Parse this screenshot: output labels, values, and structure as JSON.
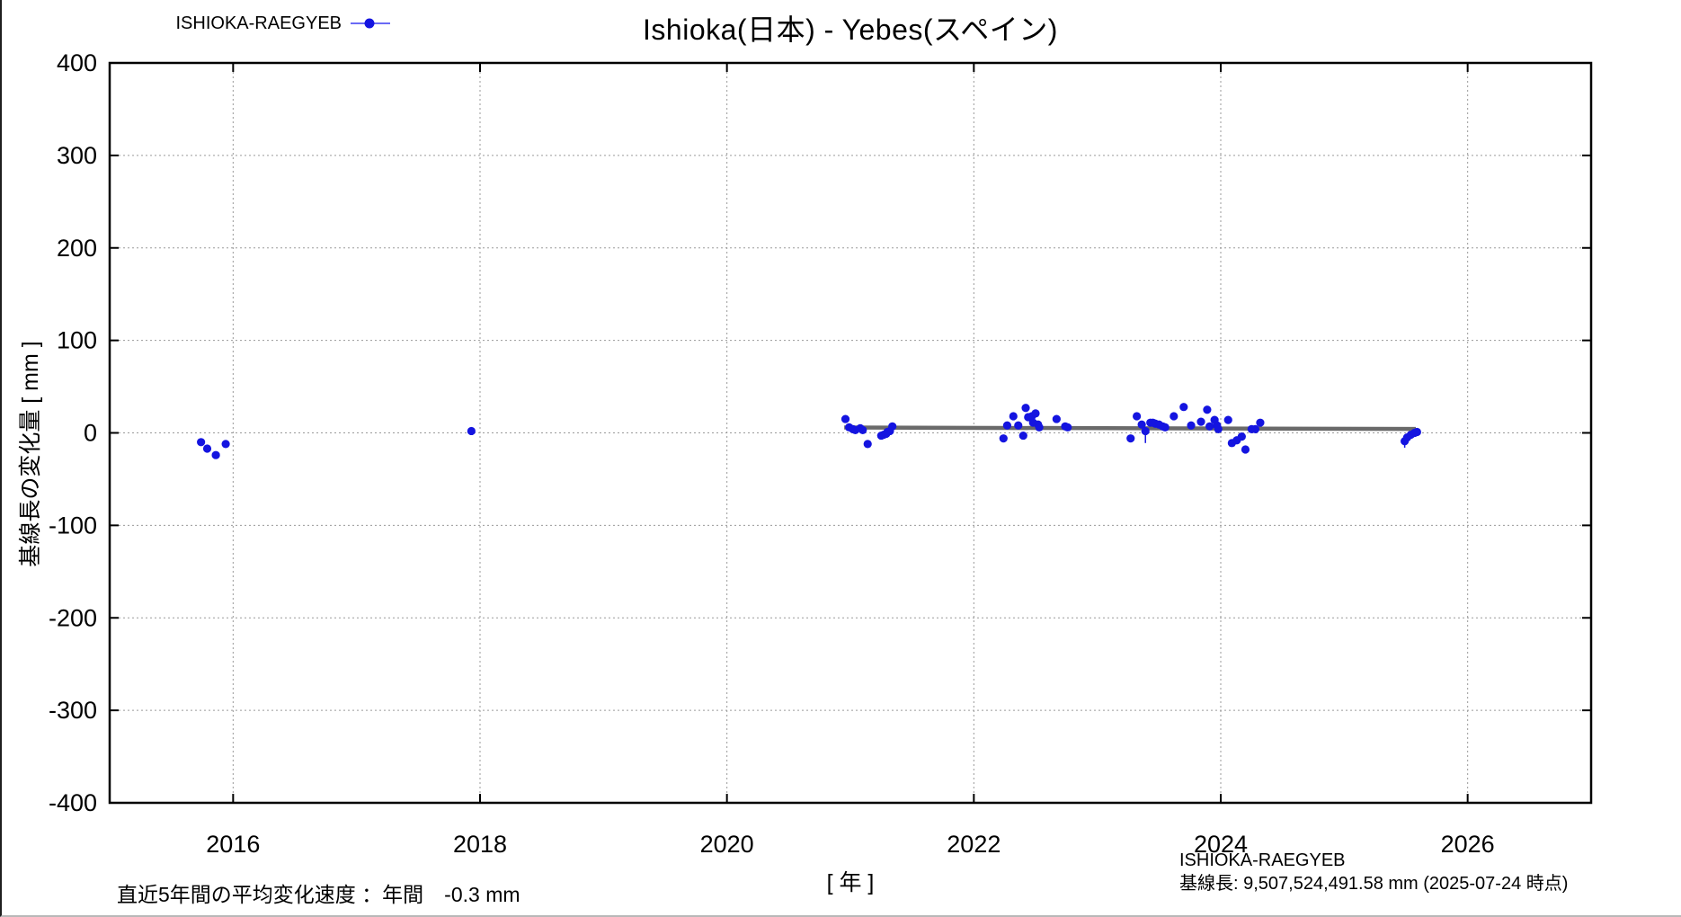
{
  "title": "Ishioka(日本) - Yebes(スペイン)",
  "legend": {
    "label": "ISHIOKA-RAEGYEB"
  },
  "axis": {
    "y_label": "基線長の変化量 [ mm ]",
    "x_label": "[ 年 ]"
  },
  "footnotes": {
    "rate": "直近5年間の平均変化速度 ：年間　-0.3 mm",
    "pair": "ISHIOKA-RAEGYEB",
    "baseline": "基線長: 9,507,524,491.58 mm (2025-07-24 時点)"
  },
  "colors": {
    "marker": "#1414e0",
    "legend_line": "#6a6af5",
    "trend": "#6a6a6a",
    "grid": "#9a9a9a",
    "axis": "#000000"
  },
  "chart_data": {
    "type": "scatter",
    "title": "Ishioka(日本) - Yebes(スペイン)",
    "series_name": "ISHIOKA-RAEGYEB",
    "xlabel": "[ 年 ]",
    "ylabel": "基線長の変化量 [ mm ]",
    "xlim": [
      2015,
      2027
    ],
    "ylim": [
      -400,
      400
    ],
    "xticks": [
      2016,
      2018,
      2020,
      2022,
      2024,
      2026
    ],
    "yticks": [
      -400,
      -300,
      -200,
      -100,
      0,
      100,
      200,
      300,
      400
    ],
    "grid": "dotted-at-major-ticks",
    "legend_position": "top-left-outside",
    "points": [
      [
        2015.74,
        -10
      ],
      [
        2015.79,
        -17
      ],
      [
        2015.86,
        -24
      ],
      [
        2015.94,
        -12
      ],
      [
        2017.93,
        2
      ],
      [
        2020.96,
        15
      ],
      [
        2020.99,
        6
      ],
      [
        2021.02,
        4
      ],
      [
        2021.04,
        3
      ],
      [
        2021.08,
        5
      ],
      [
        2021.1,
        3
      ],
      [
        2021.14,
        -12
      ],
      [
        2021.25,
        -3
      ],
      [
        2021.27,
        -2
      ],
      [
        2021.29,
        -1
      ],
      [
        2021.3,
        1
      ],
      [
        2021.32,
        2
      ],
      [
        2021.34,
        7
      ],
      [
        2022.24,
        -6
      ],
      [
        2022.27,
        8
      ],
      [
        2022.32,
        18
      ],
      [
        2022.36,
        8
      ],
      [
        2022.4,
        -3
      ],
      [
        2022.42,
        27
      ],
      [
        2022.44,
        17
      ],
      [
        2022.47,
        18
      ],
      [
        2022.48,
        11
      ],
      [
        2022.5,
        21
      ],
      [
        2022.52,
        9
      ],
      [
        2022.53,
        6
      ],
      [
        2022.67,
        15
      ],
      [
        2022.74,
        7
      ],
      [
        2022.76,
        6
      ],
      [
        2023.27,
        -6
      ],
      [
        2023.32,
        18
      ],
      [
        2023.36,
        9
      ],
      [
        2023.39,
        2
      ],
      [
        2023.43,
        11
      ],
      [
        2023.45,
        11
      ],
      [
        2023.47,
        10
      ],
      [
        2023.5,
        9
      ],
      [
        2023.53,
        7
      ],
      [
        2023.55,
        6
      ],
      [
        2023.62,
        18
      ],
      [
        2023.7,
        28
      ],
      [
        2023.76,
        8
      ],
      [
        2023.84,
        12
      ],
      [
        2023.89,
        25
      ],
      [
        2023.91,
        7
      ],
      [
        2023.95,
        14
      ],
      [
        2023.97,
        8
      ],
      [
        2023.98,
        4
      ],
      [
        2024.06,
        14
      ],
      [
        2024.09,
        -11
      ],
      [
        2024.13,
        -8
      ],
      [
        2024.17,
        -4
      ],
      [
        2024.2,
        -18
      ],
      [
        2024.25,
        4
      ],
      [
        2024.28,
        4
      ],
      [
        2024.32,
        11
      ],
      [
        2025.49,
        -9
      ],
      [
        2025.51,
        -5
      ],
      [
        2025.54,
        -2
      ],
      [
        2025.57,
        0
      ],
      [
        2025.59,
        1
      ]
    ],
    "error_bars": [
      {
        "x": 2023.39,
        "low": -11,
        "high": 3
      },
      {
        "x": 2025.49,
        "low": -16,
        "high": -8
      }
    ],
    "trend_line": {
      "x1": 2020.95,
      "y1": 5.8,
      "x2": 2025.58,
      "y2": 4.2
    },
    "annotations": {
      "rate_note": "直近5年間の平均変化速度 ：年間　-0.3 mm",
      "baseline_note": "基線長: 9,507,524,491.58 mm (2025-07-24 時点)"
    }
  }
}
